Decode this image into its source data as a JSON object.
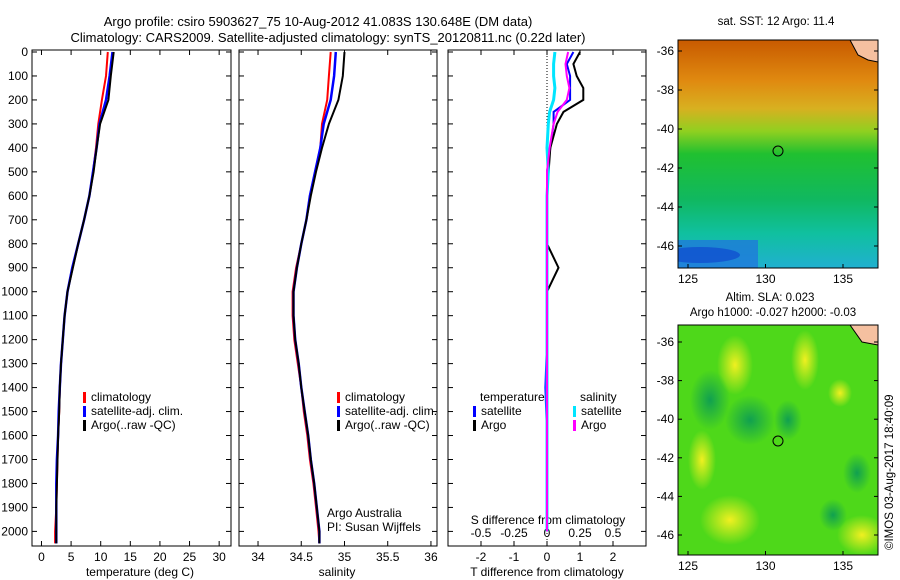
{
  "title_line1": "Argo profile: csiro 5903627_75 10-Aug-2012 41.083S 130.648E (DM data)",
  "title_line2": "Climatology: CARS2009. Satellite-adjusted climatology: synTS_20120811.nc (0.22d later)",
  "timestamp": "©IMOS 03-Aug-2017 18:40:09",
  "colors": {
    "climatology": "#ff0000",
    "satellite": "#0000ff",
    "argo": "#000000",
    "sal_satellite": "#00e5ff",
    "sal_argo": "#ff00ff"
  },
  "chart_data": [
    {
      "type": "line",
      "title": "temperature profile",
      "xlabel": "temperature (deg C)",
      "ylabel": "",
      "xlim": [
        -1.6,
        32
      ],
      "ylim": [
        2060,
        0
      ],
      "xticks": [
        "0",
        "5",
        "10",
        "15",
        "20",
        "25",
        "30"
      ],
      "yticks": [
        "0",
        "100",
        "200",
        "300",
        "400",
        "500",
        "600",
        "700",
        "800",
        "900",
        "1000",
        "1100",
        "1200",
        "1300",
        "1400",
        "1500",
        "1600",
        "1700",
        "1800",
        "1900",
        "2000"
      ],
      "depth": [
        0,
        100,
        200,
        300,
        400,
        500,
        600,
        700,
        800,
        900,
        1000,
        1100,
        1200,
        1300,
        1400,
        1500,
        1600,
        1700,
        1800,
        1900,
        2000,
        2050
      ],
      "series": [
        {
          "name": "climatology",
          "values": [
            11.2,
            10.9,
            10.2,
            9.6,
            9.2,
            8.7,
            8.1,
            7.2,
            6.2,
            5.2,
            4.4,
            3.9,
            3.6,
            3.3,
            3.1,
            3.0,
            2.8,
            2.7,
            2.6,
            2.5,
            2.3,
            2.3
          ]
        },
        {
          "name": "satellite-adj. clim.",
          "values": [
            12.0,
            11.5,
            10.9,
            9.8,
            9.3,
            8.7,
            8.1,
            7.2,
            6.2,
            5.2,
            4.4,
            3.9,
            3.6,
            3.3,
            3.1,
            2.9,
            2.8,
            2.6,
            2.5,
            2.5,
            2.5,
            2.5
          ]
        },
        {
          "name": "Argo(..raw -QC)",
          "values": [
            12.2,
            11.7,
            11.3,
            9.9,
            9.3,
            8.8,
            8.1,
            7.2,
            6.2,
            5.3,
            4.4,
            3.9,
            3.6,
            3.3,
            3.1,
            3.0,
            2.8,
            2.7,
            2.6,
            2.5,
            2.5,
            2.5
          ]
        }
      ],
      "legend": [
        "climatology",
        "satellite-adj. clim.",
        "Argo(..raw -QC)"
      ]
    },
    {
      "type": "line",
      "title": "salinity profile",
      "xlabel": "salinity",
      "xlim": [
        33.78,
        36.07
      ],
      "ylim": [
        2060,
        0
      ],
      "xticks": [
        "34",
        "34.5",
        "35",
        "35.5",
        "36"
      ],
      "depth": [
        0,
        100,
        200,
        300,
        400,
        500,
        600,
        700,
        800,
        900,
        1000,
        1100,
        1200,
        1300,
        1400,
        1500,
        1600,
        1700,
        1800,
        1900,
        2000,
        2050
      ],
      "series": [
        {
          "name": "climatology",
          "values": [
            34.84,
            34.82,
            34.8,
            34.74,
            34.72,
            34.66,
            34.6,
            34.56,
            34.5,
            34.44,
            34.4,
            34.4,
            34.42,
            34.46,
            34.5,
            34.53,
            34.57,
            34.6,
            34.64,
            34.67,
            34.7,
            34.71
          ]
        },
        {
          "name": "satellite-adj. clim.",
          "values": [
            34.9,
            34.88,
            34.84,
            34.76,
            34.72,
            34.66,
            34.6,
            34.56,
            34.5,
            34.45,
            34.41,
            34.41,
            34.43,
            34.47,
            34.5,
            34.54,
            34.58,
            34.61,
            34.65,
            34.68,
            34.71,
            34.71
          ]
        },
        {
          "name": "Argo(..raw -QC)",
          "values": [
            35.0,
            34.98,
            34.93,
            34.82,
            34.74,
            34.67,
            34.61,
            34.56,
            34.5,
            34.45,
            34.41,
            34.41,
            34.43,
            34.47,
            34.5,
            34.54,
            34.58,
            34.61,
            34.65,
            34.68,
            34.71,
            34.71
          ]
        }
      ],
      "legend": [
        "climatology",
        "satellite-adj. clim.",
        "Argo(..raw -QC)"
      ],
      "annotation_line1": "Argo Australia",
      "annotation_line2": "PI: Susan Wijffels"
    },
    {
      "type": "line",
      "title": "difference from climatology",
      "xlabel": "T difference from climatology",
      "xlabel_top": "S difference from climatology",
      "xlim": [
        -3.0,
        3.0
      ],
      "xticks": [
        "-2",
        "-1",
        "0",
        "1",
        "2"
      ],
      "xticks_top": [
        "-0.5",
        "-0.25",
        "0",
        "0.25",
        "0.5"
      ],
      "depth": [
        0,
        50,
        100,
        150,
        200,
        250,
        300,
        400,
        500,
        600,
        700,
        800,
        900,
        1000,
        1200,
        1400,
        1600,
        1800,
        2000
      ],
      "series": [
        {
          "name": "temperature satellite",
          "values": [
            0.8,
            0.6,
            0.7,
            0.7,
            0.7,
            0.2,
            0.2,
            0.1,
            0.0,
            0.0,
            0.0,
            0.0,
            0.0,
            0.0,
            0.0,
            -0.05,
            0.0,
            0.0,
            0.0
          ]
        },
        {
          "name": "temperature Argo",
          "values": [
            1.0,
            0.8,
            0.9,
            1.1,
            1.1,
            0.5,
            0.3,
            0.1,
            0.05,
            0.0,
            0.0,
            0.0,
            0.35,
            0.0,
            0.0,
            0.0,
            0.0,
            0.0,
            0.0
          ]
        },
        {
          "name": "salinity satellite",
          "values": [
            0.06,
            0.05,
            0.05,
            0.06,
            0.05,
            0.02,
            0.01,
            0.0,
            0.01,
            0.0,
            0.0,
            0.0,
            0.0,
            0.0,
            0.0,
            0.0,
            0.0,
            0.0,
            0.0
          ]
        },
        {
          "name": "salinity Argo",
          "values": [
            0.16,
            0.14,
            0.15,
            0.17,
            0.15,
            0.08,
            0.05,
            0.02,
            0.0,
            0.0,
            0.0,
            0.0,
            0.0,
            0.0,
            0.0,
            0.0,
            0.0,
            0.0,
            0.0
          ]
        }
      ],
      "legend_temperature_title": "temperature",
      "legend_salinity_title": "salinity",
      "legend_satellite": "satellite",
      "legend_argo": "Argo"
    },
    {
      "type": "heatmap",
      "title": "sat. SST: 12 Argo: 11.4",
      "xticks": [
        "125",
        "130",
        "135"
      ],
      "yticks": [
        "-36",
        "-38",
        "-40",
        "-42",
        "-44",
        "-46"
      ],
      "profile_position": {
        "lon": 130.648,
        "lat": -41.083
      }
    },
    {
      "type": "heatmap",
      "title_line1": "Altim. SLA: 0.023",
      "title_line2": "Argo h1000: -0.027 h2000: -0.03",
      "xticks": [
        "125",
        "130",
        "135"
      ],
      "yticks": [
        "-36",
        "-38",
        "-40",
        "-42",
        "-44",
        "-46"
      ],
      "profile_position": {
        "lon": 130.648,
        "lat": -41.083
      }
    }
  ]
}
